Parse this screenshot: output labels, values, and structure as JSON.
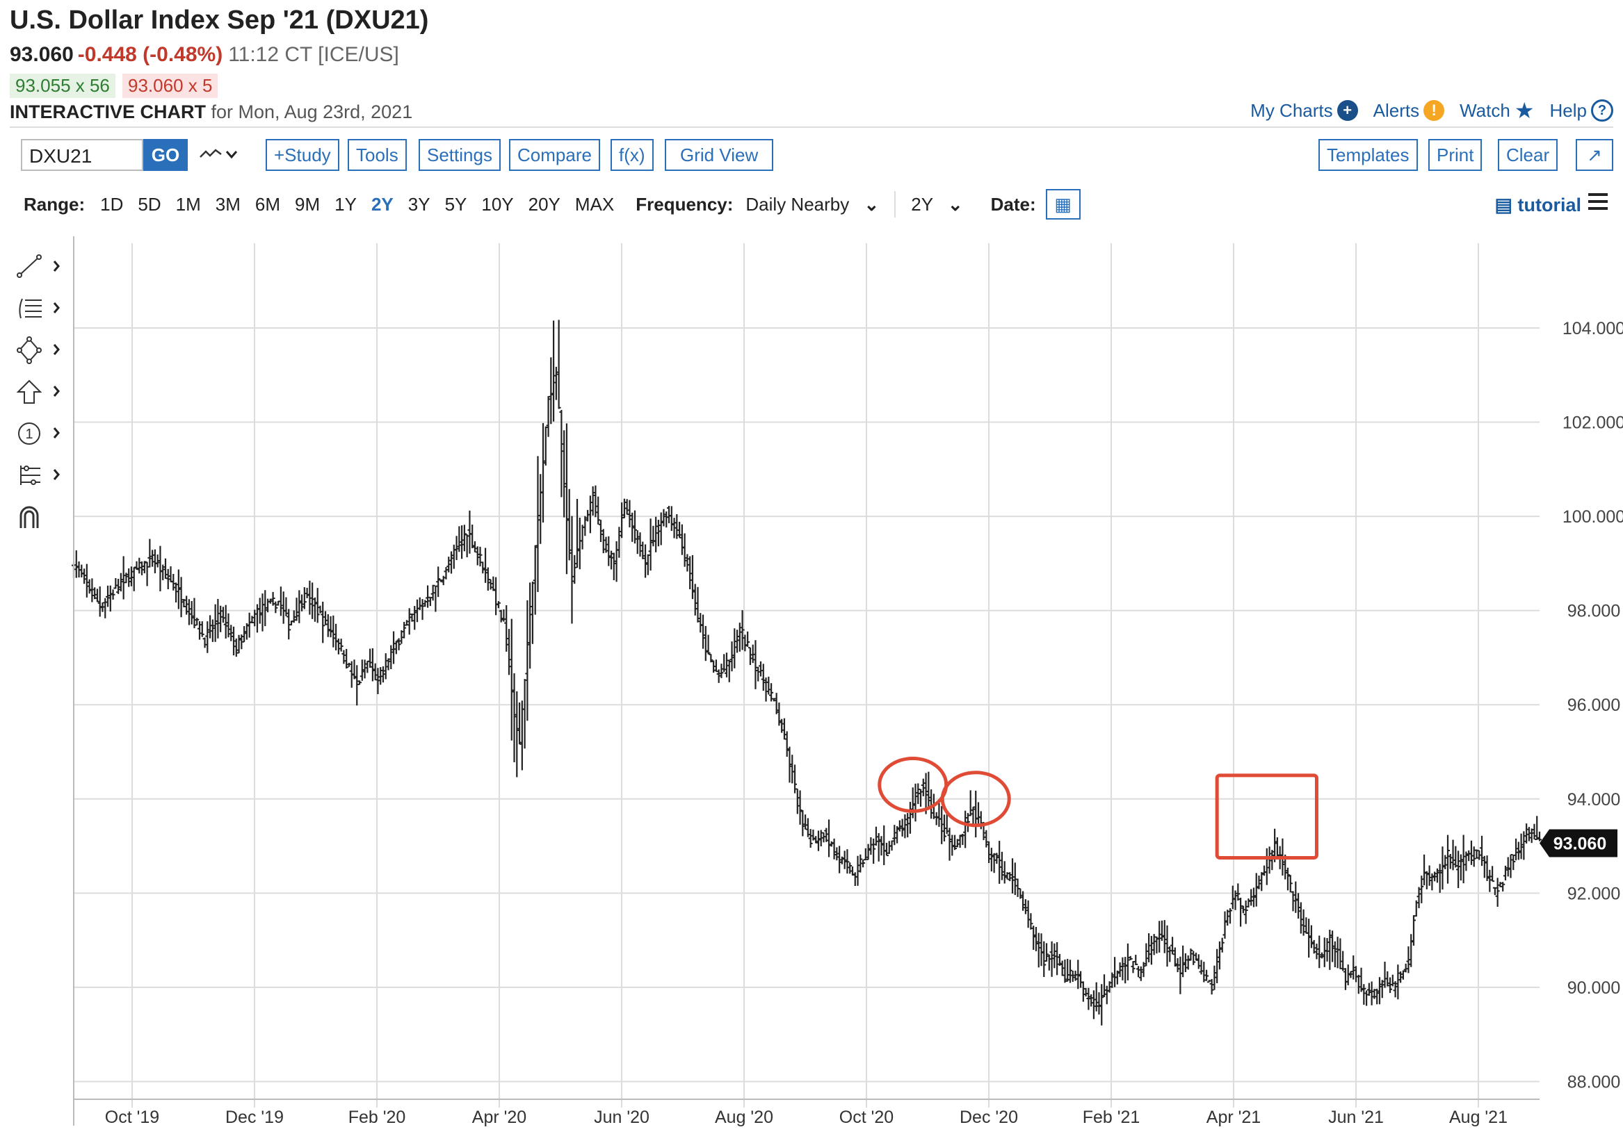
{
  "header": {
    "title": "U.S. Dollar Index Sep '21 (DXU21)",
    "last": "93.060",
    "change": "-0.448 (-0.48%)",
    "time": "11:12 CT [ICE/US]",
    "bid": "93.055 x 56",
    "ask": "93.060 x 5",
    "interactive_label": "INTERACTIVE CHART",
    "interactive_date": "for Mon, Aug 23rd, 2021"
  },
  "top_links": {
    "my_charts": "My Charts",
    "alerts": "Alerts",
    "watch": "Watch",
    "help": "Help"
  },
  "toolbar": {
    "symbol": "DXU21",
    "go": "GO",
    "study": "+Study",
    "tools": "Tools",
    "settings": "Settings",
    "compare": "Compare",
    "fx": "f(x)",
    "grid_view": "Grid View",
    "templates": "Templates",
    "print": "Print",
    "clear": "Clear"
  },
  "range_bar": {
    "range_label": "Range:",
    "ranges": [
      "1D",
      "5D",
      "1M",
      "3M",
      "6M",
      "9M",
      "1Y",
      "2Y",
      "3Y",
      "5Y",
      "10Y",
      "20Y",
      "MAX"
    ],
    "selected": "2Y",
    "frequency_label": "Frequency:",
    "frequency": "Daily Nearby",
    "period": "2Y",
    "date_label": "Date:",
    "tutorial": "tutorial"
  },
  "colors": {
    "accent": "#2a6fba",
    "down": "#c0392b",
    "annotation": "#e04b35",
    "bars": "#222222"
  },
  "chart_data": {
    "type": "ohlc",
    "x_ticks": [
      "Oct '19",
      "Dec '19",
      "Feb '20",
      "Apr '20",
      "Jun '20",
      "Aug '20",
      "Oct '20",
      "Dec '20",
      "Feb '21",
      "Apr '21",
      "Jun '21",
      "Aug '21"
    ],
    "y_ticks": [
      "88.000",
      "90.000",
      "92.000",
      "94.000",
      "96.000",
      "98.000",
      "100.000",
      "102.000",
      "104.000"
    ],
    "ylim": [
      87.8,
      105.8
    ],
    "grid": true,
    "last_price_label": "93.060",
    "anchors": [
      [
        0,
        99.0
      ],
      [
        10,
        98.1
      ],
      [
        20,
        98.7
      ],
      [
        30,
        99.1
      ],
      [
        40,
        98.4
      ],
      [
        50,
        97.4
      ],
      [
        56,
        97.9
      ],
      [
        62,
        97.2
      ],
      [
        70,
        98.0
      ],
      [
        78,
        98.2
      ],
      [
        82,
        97.7
      ],
      [
        88,
        98.3
      ],
      [
        92,
        98.1
      ],
      [
        96,
        97.7
      ],
      [
        100,
        97.4
      ],
      [
        104,
        96.9
      ],
      [
        108,
        96.4
      ],
      [
        112,
        96.9
      ],
      [
        116,
        96.5
      ],
      [
        122,
        97.2
      ],
      [
        128,
        97.8
      ],
      [
        134,
        98.2
      ],
      [
        140,
        98.7
      ],
      [
        146,
        99.3
      ],
      [
        150,
        99.7
      ],
      [
        155,
        99.1
      ],
      [
        160,
        98.4
      ],
      [
        164,
        97.7
      ],
      [
        166,
        96.9
      ],
      [
        168,
        95.7
      ],
      [
        170,
        95.2
      ],
      [
        172,
        96.6
      ],
      [
        175,
        98.7
      ],
      [
        178,
        100.5
      ],
      [
        181,
        102.5
      ],
      [
        184,
        103.1
      ],
      [
        187,
        100.6
      ],
      [
        190,
        98.7
      ],
      [
        194,
        99.7
      ],
      [
        198,
        100.4
      ],
      [
        202,
        99.4
      ],
      [
        206,
        99.1
      ],
      [
        210,
        100.2
      ],
      [
        214,
        99.6
      ],
      [
        218,
        99.1
      ],
      [
        222,
        99.7
      ],
      [
        226,
        100.1
      ],
      [
        230,
        99.7
      ],
      [
        234,
        99.0
      ],
      [
        238,
        97.8
      ],
      [
        242,
        97.0
      ],
      [
        246,
        96.6
      ],
      [
        250,
        96.9
      ],
      [
        254,
        97.6
      ],
      [
        258,
        97.1
      ],
      [
        262,
        96.6
      ],
      [
        266,
        96.2
      ],
      [
        270,
        95.5
      ],
      [
        274,
        94.5
      ],
      [
        278,
        93.4
      ],
      [
        282,
        93.1
      ],
      [
        286,
        93.3
      ],
      [
        290,
        92.9
      ],
      [
        294,
        92.6
      ],
      [
        298,
        92.4
      ],
      [
        302,
        92.8
      ],
      [
        306,
        93.1
      ],
      [
        310,
        92.9
      ],
      [
        314,
        93.3
      ],
      [
        318,
        93.5
      ],
      [
        321,
        94.1
      ],
      [
        324,
        94.3
      ],
      [
        327,
        93.8
      ],
      [
        330,
        93.5
      ],
      [
        333,
        93.2
      ],
      [
        336,
        92.9
      ],
      [
        340,
        93.5
      ],
      [
        343,
        93.8
      ],
      [
        346,
        93.4
      ],
      [
        349,
        92.8
      ],
      [
        352,
        92.8
      ],
      [
        355,
        92.3
      ],
      [
        358,
        92.4
      ],
      [
        362,
        91.8
      ],
      [
        366,
        91.1
      ],
      [
        370,
        90.6
      ],
      [
        374,
        90.7
      ],
      [
        378,
        90.2
      ],
      [
        382,
        90.3
      ],
      [
        386,
        89.8
      ],
      [
        390,
        89.6
      ],
      [
        394,
        90.0
      ],
      [
        398,
        90.4
      ],
      [
        402,
        90.6
      ],
      [
        406,
        90.3
      ],
      [
        410,
        90.8
      ],
      [
        414,
        91.1
      ],
      [
        418,
        90.8
      ],
      [
        422,
        90.3
      ],
      [
        426,
        90.7
      ],
      [
        430,
        90.3
      ],
      [
        434,
        90.0
      ],
      [
        437,
        90.8
      ],
      [
        440,
        91.6
      ],
      [
        443,
        92.0
      ],
      [
        446,
        91.6
      ],
      [
        449,
        91.9
      ],
      [
        452,
        92.3
      ],
      [
        455,
        92.6
      ],
      [
        458,
        93.0
      ],
      [
        461,
        92.6
      ],
      [
        464,
        92.1
      ],
      [
        467,
        91.6
      ],
      [
        470,
        91.1
      ],
      [
        473,
        90.8
      ],
      [
        476,
        90.6
      ],
      [
        479,
        91.0
      ],
      [
        482,
        90.7
      ],
      [
        485,
        90.1
      ],
      [
        488,
        90.4
      ],
      [
        491,
        90.0
      ],
      [
        494,
        89.9
      ],
      [
        497,
        89.9
      ],
      [
        500,
        90.2
      ],
      [
        503,
        90.0
      ],
      [
        506,
        90.3
      ],
      [
        509,
        90.6
      ],
      [
        512,
        91.9
      ],
      [
        515,
        92.4
      ],
      [
        518,
        92.3
      ],
      [
        521,
        92.5
      ],
      [
        524,
        92.8
      ],
      [
        527,
        92.6
      ],
      [
        530,
        92.7
      ],
      [
        533,
        92.8
      ],
      [
        536,
        92.9
      ],
      [
        539,
        92.4
      ],
      [
        542,
        92.0
      ],
      [
        545,
        92.3
      ],
      [
        548,
        92.7
      ],
      [
        551,
        92.9
      ],
      [
        554,
        93.3
      ],
      [
        557,
        93.2
      ],
      [
        559,
        93.06
      ]
    ],
    "annotations": [
      {
        "shape": "ellipse",
        "at_bar": 320,
        "price": 94.3
      },
      {
        "shape": "ellipse",
        "at_bar": 344,
        "price": 94.0
      },
      {
        "shape": "rectangle",
        "from_bar": 436,
        "to_bar": 474,
        "price_low": 92.75,
        "price_high": 94.5
      }
    ]
  }
}
